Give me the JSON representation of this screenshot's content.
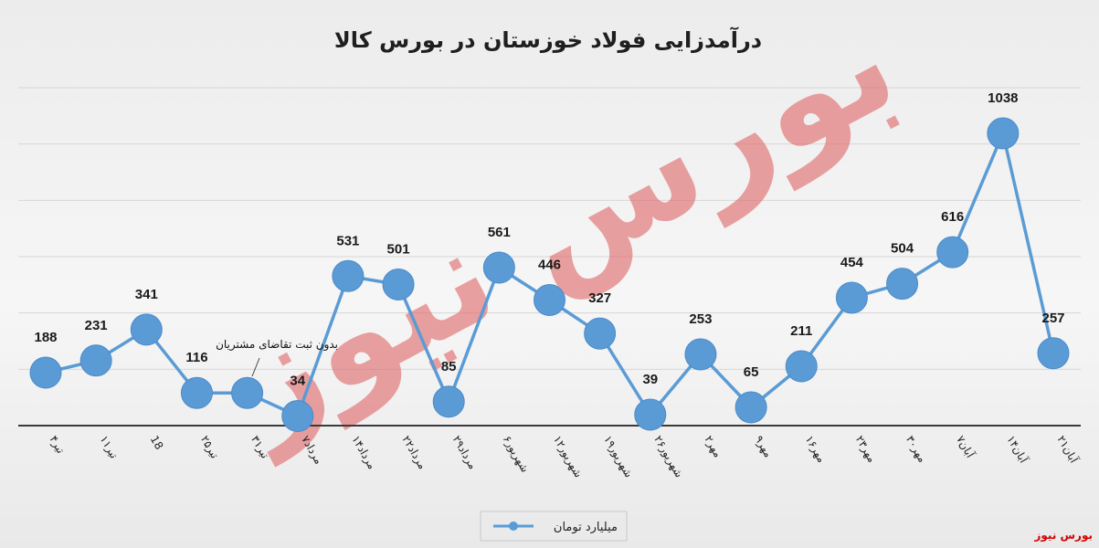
{
  "source_label": "بورس نیوز",
  "watermark_text": "بورس نیوز",
  "chart_data": {
    "type": "line",
    "title": "درآمدزایی فولاد خوزستان در بورس کالا",
    "categories": [
      "۴تیر",
      "۱۱تیر",
      "18",
      "۲۵تیر",
      "۳۱تیر",
      "۷مرداد",
      "۱۴مرداد",
      "۲۲مرداد",
      "۲۹مرداد",
      "۶شهریور",
      "۱۲شهریور",
      "۱۹شهریور",
      "۲۶شهریور",
      "۲مهر",
      "۹مهر",
      "۱۶مهر",
      "۲۳مهر",
      "۳۰مهر",
      "۷آبان",
      "۱۴آبان",
      "۲۱آبان"
    ],
    "series": [
      {
        "name": "میلیارد تومان",
        "color": "#5b9bd5",
        "values": [
          188,
          231,
          341,
          116,
          116,
          34,
          531,
          501,
          85,
          561,
          446,
          327,
          39,
          253,
          65,
          211,
          454,
          504,
          616,
          1038,
          257
        ]
      }
    ],
    "data_labels": [
      "188",
      "231",
      "341",
      "116",
      "",
      "34",
      "531",
      "501",
      "85",
      "561",
      "446",
      "327",
      "39",
      "253",
      "65",
      "211",
      "454",
      "504",
      "616",
      "1038",
      "257"
    ],
    "annotation": "بدون ثبت تقاضای مشتریان",
    "legend": "bottom",
    "grid": true,
    "ylim": [
      0,
      1200
    ]
  }
}
